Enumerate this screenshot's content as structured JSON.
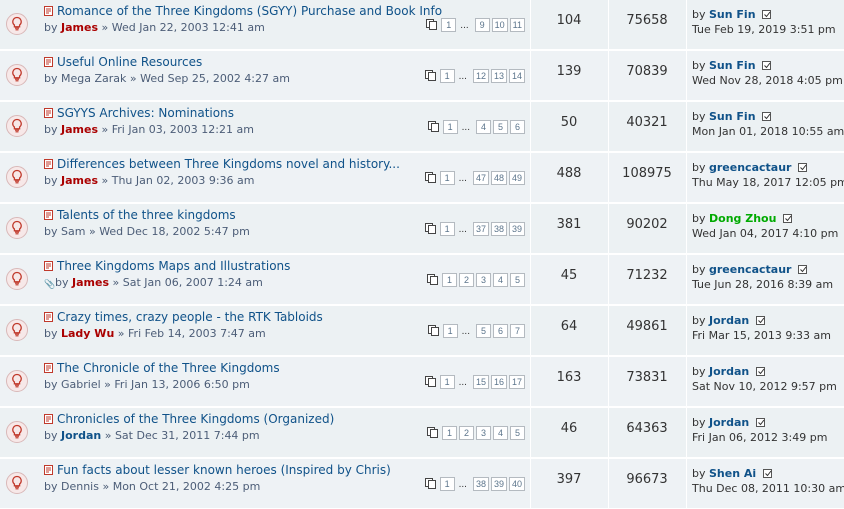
{
  "topics": [
    {
      "title": "Romance of the Three Kingdoms (SGYY) Purchase and Book Info",
      "author": "James",
      "author_style": "red",
      "date": "Wed Jan 22, 2003 12:41 am",
      "pages": [
        "1",
        "...",
        "9",
        "10",
        "11"
      ],
      "replies": "104",
      "views": "75658",
      "last_author": "Sun Fin",
      "last_author_style": "blue",
      "last_date": "Tue Feb 19, 2019 3:51 pm",
      "attachment": false
    },
    {
      "title": "Useful Online Resources",
      "author": "Mega Zarak",
      "author_style": "plain",
      "date": "Wed Sep 25, 2002 4:27 am",
      "pages": [
        "1",
        "...",
        "12",
        "13",
        "14"
      ],
      "replies": "139",
      "views": "70839",
      "last_author": "Sun Fin",
      "last_author_style": "blue",
      "last_date": "Wed Nov 28, 2018 4:05 pm",
      "attachment": false
    },
    {
      "title": "SGYYS Archives: Nominations",
      "author": "James",
      "author_style": "red",
      "date": "Fri Jan 03, 2003 12:21 am",
      "pages": [
        "1",
        "...",
        "4",
        "5",
        "6"
      ],
      "replies": "50",
      "views": "40321",
      "last_author": "Sun Fin",
      "last_author_style": "blue",
      "last_date": "Mon Jan 01, 2018 10:55 am",
      "attachment": false
    },
    {
      "title": "Differences between Three Kingdoms novel and history...",
      "author": "James",
      "author_style": "red",
      "date": "Thu Jan 02, 2003 9:36 am",
      "pages": [
        "1",
        "...",
        "47",
        "48",
        "49"
      ],
      "replies": "488",
      "views": "108975",
      "last_author": "greencactaur",
      "last_author_style": "blue",
      "last_date": "Thu May 18, 2017 12:05 pm",
      "attachment": false
    },
    {
      "title": "Talents of the three kingdoms",
      "author": "Sam",
      "author_style": "plain",
      "date": "Wed Dec 18, 2002 5:47 pm",
      "pages": [
        "1",
        "...",
        "37",
        "38",
        "39"
      ],
      "replies": "381",
      "views": "90202",
      "last_author": "Dong Zhou",
      "last_author_style": "green",
      "last_date": "Wed Jan 04, 2017 4:10 pm",
      "attachment": false
    },
    {
      "title": "Three Kingdoms Maps and Illustrations",
      "author": "James",
      "author_style": "red",
      "date": "Sat Jan 06, 2007 1:24 am",
      "pages": [
        "1",
        "2",
        "3",
        "4",
        "5"
      ],
      "replies": "45",
      "views": "71232",
      "last_author": "greencactaur",
      "last_author_style": "blue",
      "last_date": "Tue Jun 28, 2016 8:39 am",
      "attachment": true
    },
    {
      "title": "Crazy times, crazy people - the RTK Tabloids",
      "author": "Lady Wu",
      "author_style": "red",
      "date": "Fri Feb 14, 2003 7:47 am",
      "pages": [
        "1",
        "...",
        "5",
        "6",
        "7"
      ],
      "replies": "64",
      "views": "49861",
      "last_author": "Jordan",
      "last_author_style": "blue",
      "last_date": "Fri Mar 15, 2013 9:33 am",
      "attachment": false
    },
    {
      "title": "The Chronicle of the Three Kingdoms",
      "author": "Gabriel",
      "author_style": "plain",
      "date": "Fri Jan 13, 2006 6:50 pm",
      "pages": [
        "1",
        "...",
        "15",
        "16",
        "17"
      ],
      "replies": "163",
      "views": "73831",
      "last_author": "Jordan",
      "last_author_style": "blue",
      "last_date": "Sat Nov 10, 2012 9:57 pm",
      "attachment": false
    },
    {
      "title": "Chronicles of the Three Kingdoms (Organized)",
      "author": "Jordan",
      "author_style": "blue",
      "date": "Sat Dec 31, 2011 7:44 pm",
      "pages": [
        "1",
        "2",
        "3",
        "4",
        "5"
      ],
      "replies": "46",
      "views": "64363",
      "last_author": "Jordan",
      "last_author_style": "blue",
      "last_date": "Fri Jan 06, 2012 3:49 pm",
      "attachment": false
    },
    {
      "title": "Fun facts about lesser known heroes (Inspired by Chris)",
      "author": "Dennis",
      "author_style": "plain",
      "date": "Mon Oct 21, 2002 4:25 pm",
      "pages": [
        "1",
        "...",
        "38",
        "39",
        "40"
      ],
      "replies": "397",
      "views": "96673",
      "last_author": "Shen Ai",
      "last_author_style": "blue",
      "last_date": "Thu Dec 08, 2011 10:30 am",
      "attachment": false
    }
  ],
  "labels": {
    "by": "by",
    "separator": "»"
  },
  "icons": {
    "topic_status": "lightbulb-icon",
    "post": "post-icon",
    "pages": "pages-icon",
    "view_latest": "view-latest-post-icon",
    "attachment": "paperclip-icon"
  },
  "colors": {
    "row_bg": "#ecf1f3",
    "row_alt_bg": "#e1ebf2",
    "title": "#105289",
    "admin": "#aa0000",
    "moderator": "#00aa00"
  }
}
